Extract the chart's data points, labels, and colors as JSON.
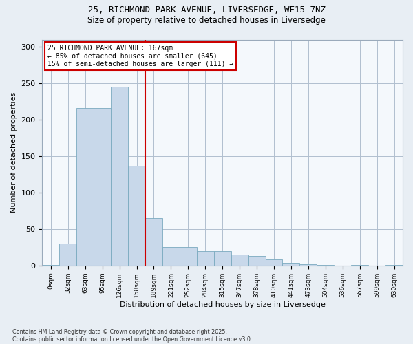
{
  "title_line1": "25, RICHMOND PARK AVENUE, LIVERSEDGE, WF15 7NZ",
  "title_line2": "Size of property relative to detached houses in Liversedge",
  "xlabel": "Distribution of detached houses by size in Liversedge",
  "ylabel": "Number of detached properties",
  "bar_color": "#c8d8ea",
  "bar_edge_color": "#7aaabf",
  "vline_color": "#cc0000",
  "vline_x": 6.0,
  "annotation_text": "25 RICHMOND PARK AVENUE: 167sqm\n← 85% of detached houses are smaller (645)\n15% of semi-detached houses are larger (111) →",
  "annotation_box_color": "#cc0000",
  "categories": [
    "0sqm",
    "32sqm",
    "63sqm",
    "95sqm",
    "126sqm",
    "158sqm",
    "189sqm",
    "221sqm",
    "252sqm",
    "284sqm",
    "315sqm",
    "347sqm",
    "378sqm",
    "410sqm",
    "441sqm",
    "473sqm",
    "504sqm",
    "536sqm",
    "567sqm",
    "599sqm",
    "630sqm"
  ],
  "values": [
    1,
    30,
    216,
    216,
    245,
    137,
    65,
    25,
    25,
    20,
    20,
    15,
    13,
    8,
    4,
    2,
    1,
    0,
    1,
    0,
    1
  ],
  "ylim": [
    0,
    310
  ],
  "yticks": [
    0,
    50,
    100,
    150,
    200,
    250,
    300
  ],
  "footer_line1": "Contains HM Land Registry data © Crown copyright and database right 2025.",
  "footer_line2": "Contains public sector information licensed under the Open Government Licence v3.0.",
  "background_color": "#e8eef4",
  "plot_bg_color": "#f4f8fc"
}
